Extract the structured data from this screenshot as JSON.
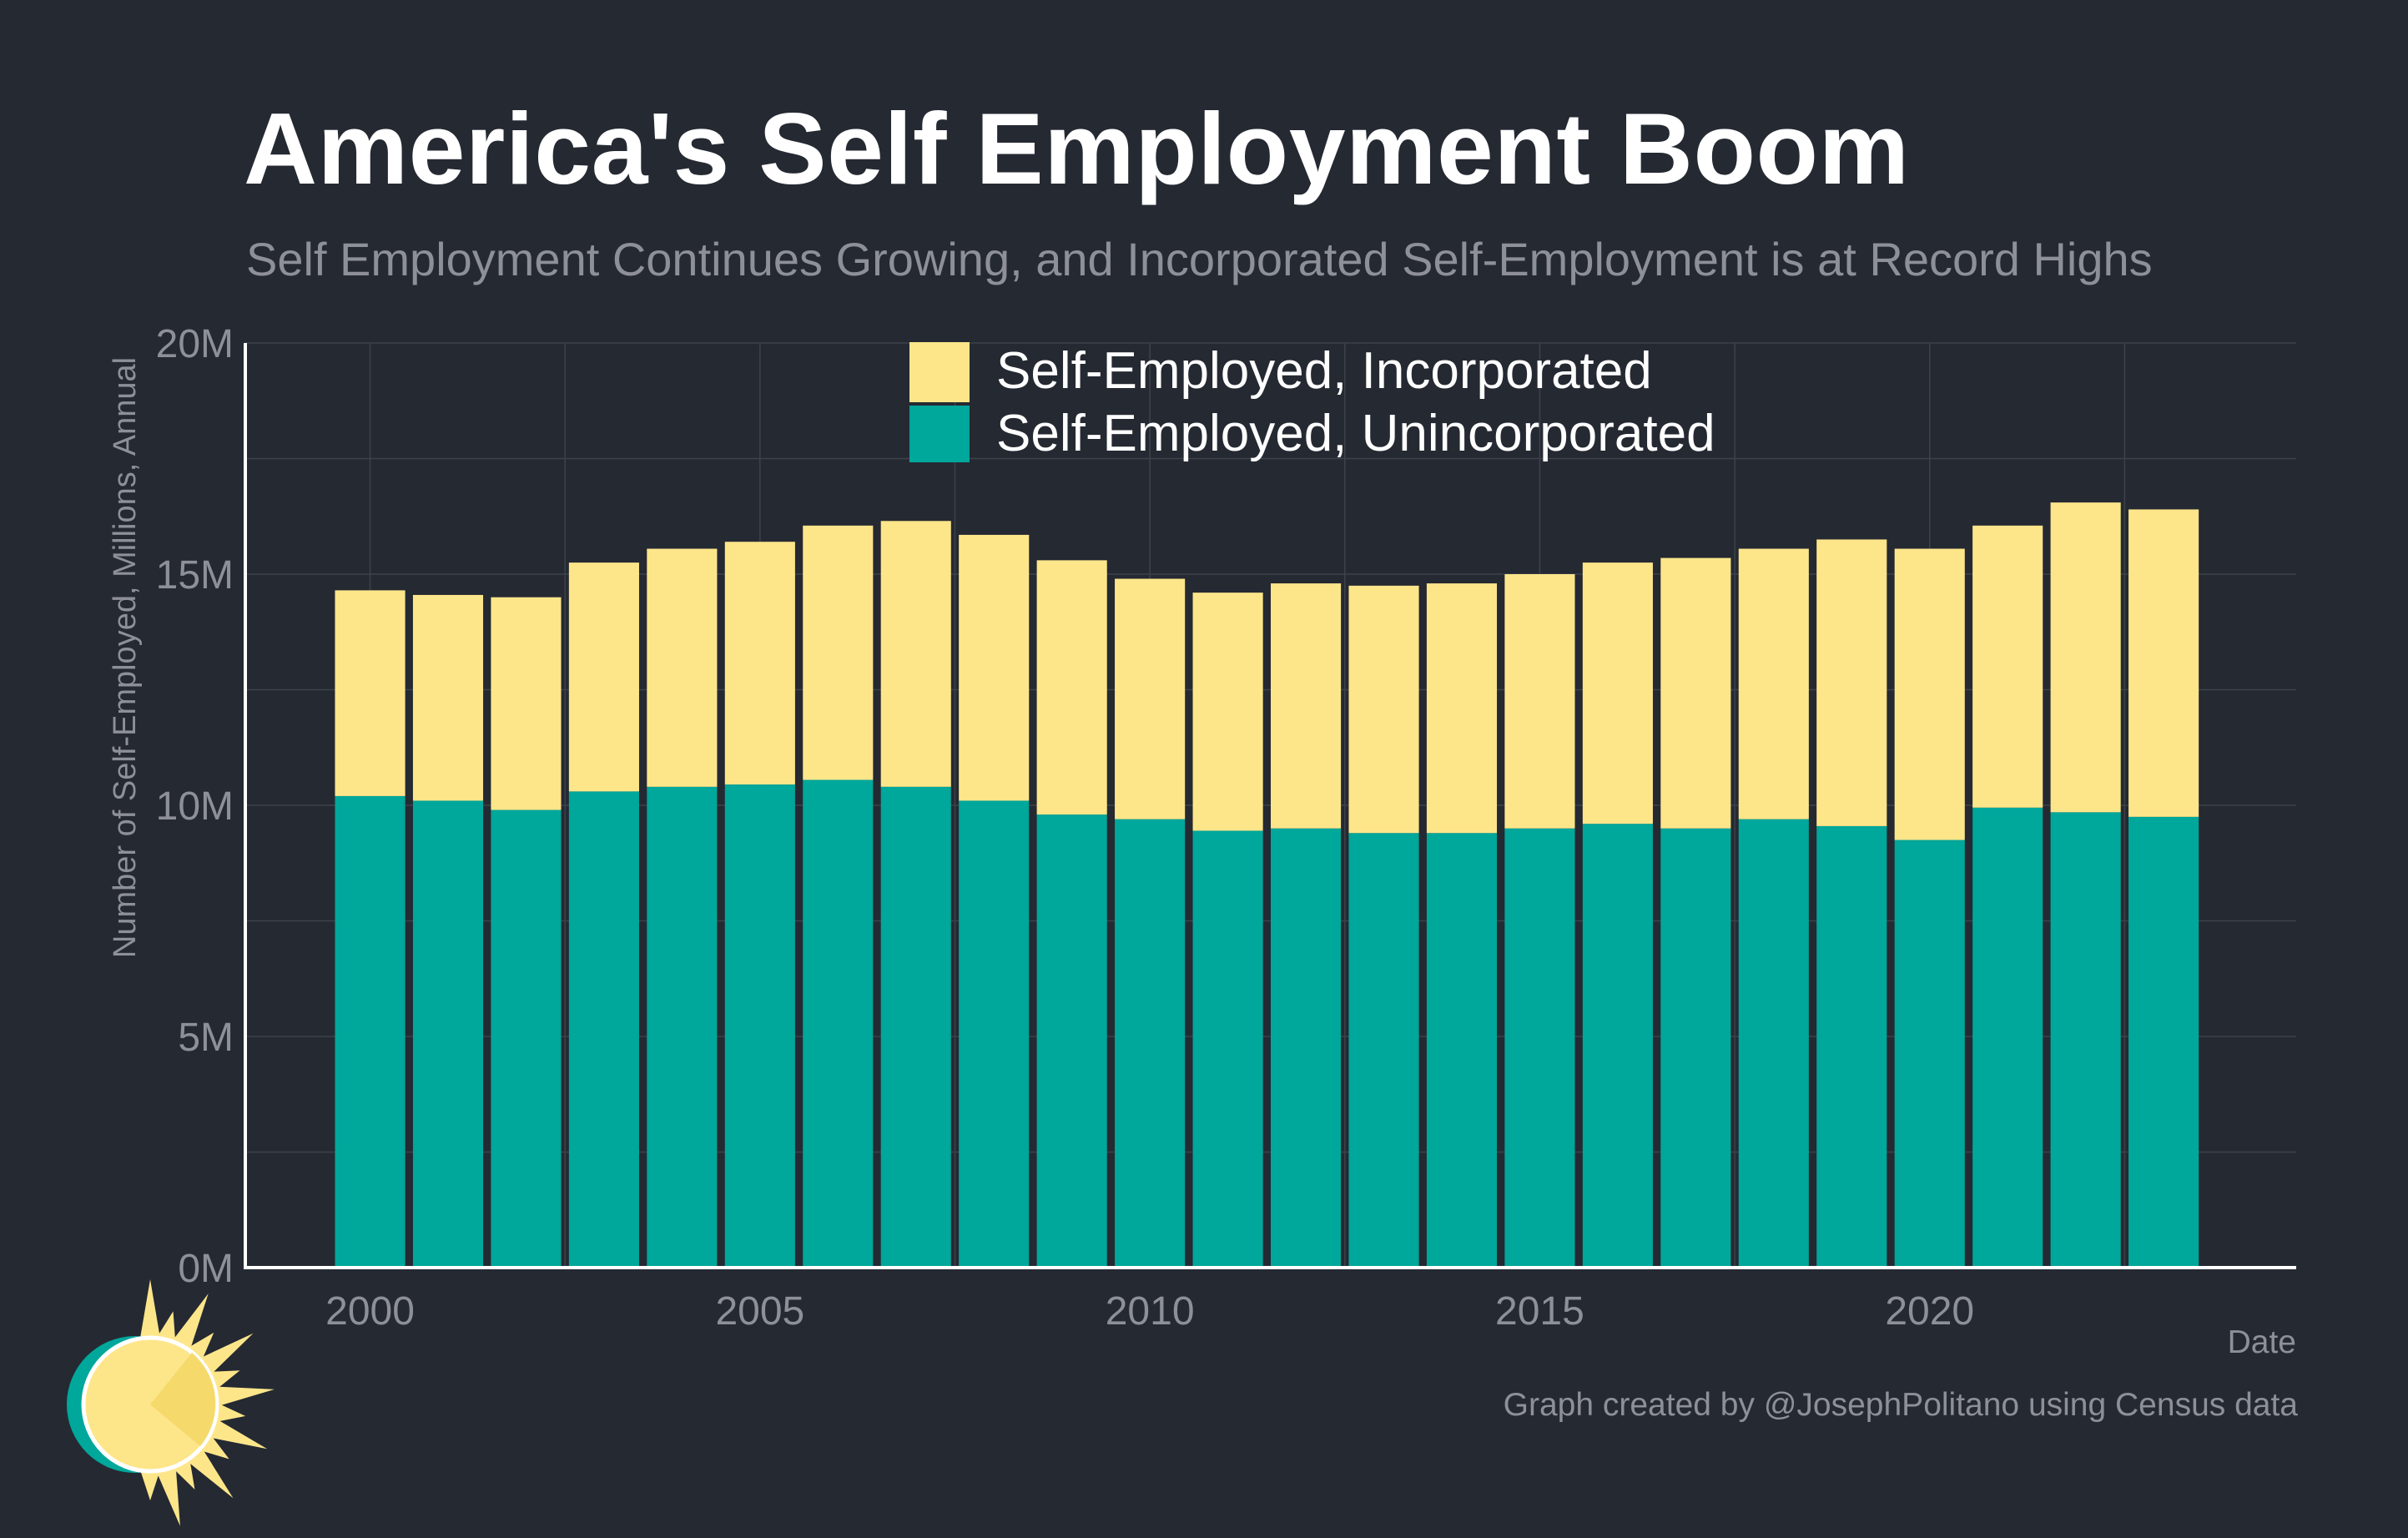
{
  "title": "America's Self Employment Boom",
  "subtitle": "Self Employment Continues Growing, and Incorporated Self-Employment is at Record Highs",
  "caption": "Graph created by @JosephPolitano using Census data",
  "colors": {
    "background": "#252932",
    "incorporated": "#fde68a",
    "unincorporated": "#00a79b",
    "grid": "#3d424b",
    "axis": "#ffffff",
    "muted_text": "#8d9099"
  },
  "logo": {
    "icon": "sun-logo-icon"
  },
  "chart_data": {
    "type": "bar",
    "stacked": true,
    "xlabel": "Date",
    "ylabel": "Number of Self-Employed, Millions, Annual",
    "ylim": [
      0,
      20
    ],
    "yticks": [
      "0M",
      "5M",
      "10M",
      "15M",
      "20M"
    ],
    "ytick_values": [
      0,
      5,
      10,
      15,
      20
    ],
    "xticks": [
      "2000",
      "2005",
      "2010",
      "2015",
      "2020"
    ],
    "xtick_values": [
      2000,
      2005,
      2010,
      2015,
      2020
    ],
    "xlim": [
      1998.4,
      2024.7
    ],
    "grid": true,
    "legend_position": "top-center",
    "categories": [
      2000,
      2001,
      2002,
      2003,
      2004,
      2005,
      2006,
      2007,
      2008,
      2009,
      2010,
      2011,
      2012,
      2013,
      2014,
      2015,
      2016,
      2017,
      2018,
      2019,
      2020,
      2021,
      2022,
      2023
    ],
    "series": [
      {
        "name": "Self-Employed, Unincorporated",
        "color": "#00a79b",
        "values": [
          10.2,
          10.1,
          9.9,
          10.3,
          10.4,
          10.45,
          10.55,
          10.4,
          10.1,
          9.8,
          9.7,
          9.45,
          9.5,
          9.4,
          9.4,
          9.5,
          9.6,
          9.5,
          9.7,
          9.55,
          9.25,
          9.95,
          9.85,
          9.75
        ]
      },
      {
        "name": "Self-Employed, Incorporated",
        "color": "#fde68a",
        "values": [
          4.45,
          4.45,
          4.6,
          4.95,
          5.15,
          5.25,
          5.5,
          5.75,
          5.75,
          5.5,
          5.2,
          5.15,
          5.3,
          5.35,
          5.4,
          5.5,
          5.65,
          5.85,
          5.85,
          6.2,
          6.3,
          6.1,
          6.7,
          6.65
        ]
      }
    ],
    "legend": [
      {
        "label": "Self-Employed, Incorporated",
        "color": "#fde68a"
      },
      {
        "label": "Self-Employed, Unincorporated",
        "color": "#00a79b"
      }
    ]
  }
}
